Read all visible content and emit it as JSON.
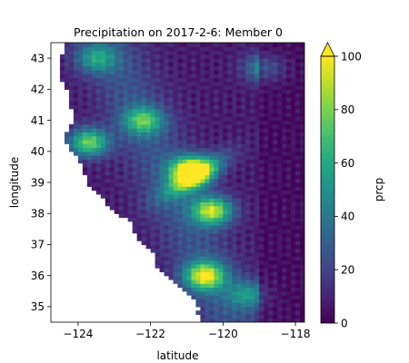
{
  "chart_data": {
    "type": "heatmap",
    "title": "Precipitation on 2017-2-6: Member 0",
    "xlabel": "latitude",
    "ylabel": "longitude",
    "xlim": [
      -124.75,
      -117.75
    ],
    "ylim": [
      34.5,
      43.5
    ],
    "x_ticks": [
      -124,
      -122,
      -120,
      -118
    ],
    "x_tick_labels": [
      "−124",
      "−122",
      "−120",
      "−118"
    ],
    "y_ticks": [
      35,
      36,
      37,
      38,
      39,
      40,
      41,
      42,
      43
    ],
    "y_tick_labels": [
      "35",
      "36",
      "37",
      "38",
      "39",
      "40",
      "41",
      "42",
      "43"
    ],
    "colorbar": {
      "label": "prcp",
      "colormap": "viridis",
      "range": [
        0,
        100
      ],
      "extend": "max",
      "ticks": [
        0,
        20,
        40,
        60,
        80,
        100
      ],
      "tick_labels": [
        "0",
        "20",
        "40",
        "60",
        "80",
        "100"
      ]
    },
    "grid": false,
    "hotspots": [
      {
        "lon": -120.9,
        "lat": 39.4,
        "value": 95
      },
      {
        "lon": -120.3,
        "lat": 38.1,
        "value": 80
      },
      {
        "lon": -123.7,
        "lat": 40.3,
        "value": 70
      },
      {
        "lon": -120.5,
        "lat": 36.0,
        "value": 80
      },
      {
        "lon": -122.2,
        "lat": 41.0,
        "value": 55
      },
      {
        "lon": -123.5,
        "lat": 43.0,
        "value": 40
      },
      {
        "lon": -118.8,
        "lat": 42.7,
        "value": 45
      },
      {
        "lon": -119.3,
        "lat": 35.4,
        "value": 40
      }
    ]
  }
}
